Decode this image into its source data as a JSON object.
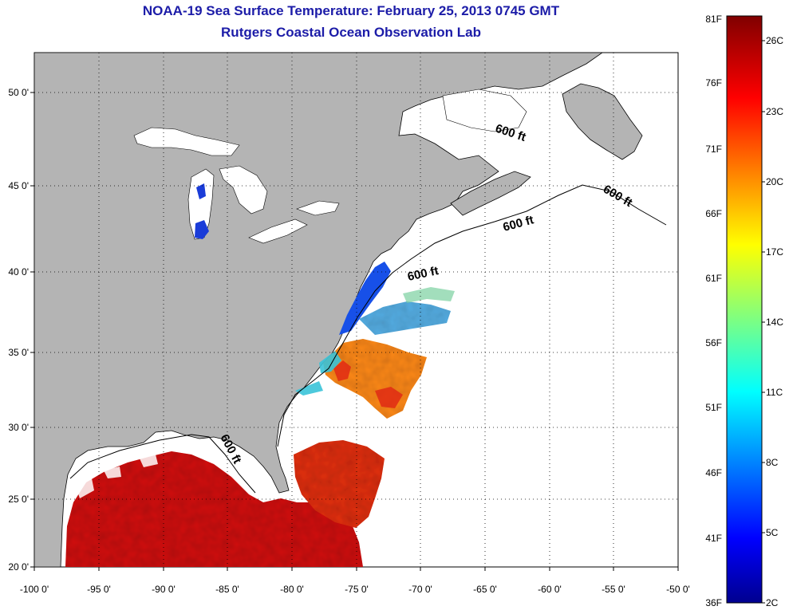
{
  "title": "NOAA-19 Sea Surface Temperature:  February 25, 2013 0745 GMT",
  "subtitle": "Rutgers Coastal Ocean Observation Lab",
  "map": {
    "lon_range": [
      -100,
      -50
    ],
    "lat_range": [
      20,
      52
    ],
    "lon_ticks": [
      "-100 0'",
      "-95 0'",
      "-90 0'",
      "-85 0'",
      "-80 0'",
      "-75 0'",
      "-70 0'",
      "-65 0'",
      "-60 0'",
      "-55 0'",
      "-50 0'"
    ],
    "lat_ticks": [
      "50 0'",
      "45 0'",
      "40 0'",
      "35 0'",
      "30 0'",
      "25 0'",
      "20 0'"
    ],
    "grid": "dotted",
    "land_color": "#b4b4b4",
    "contour_labels": [
      "600 ft",
      "600 ft",
      "600 ft",
      "600 ft",
      "600 ft"
    ]
  },
  "colorbar": {
    "colormap": "jet",
    "fahrenheit_labels": [
      "81F",
      "76F",
      "71F",
      "66F",
      "61F",
      "56F",
      "51F",
      "46F",
      "41F",
      "36F"
    ],
    "celsius_labels": [
      "26C",
      "23C",
      "20C",
      "17C",
      "14C",
      "11C",
      "8C",
      "5C",
      "2C"
    ]
  }
}
